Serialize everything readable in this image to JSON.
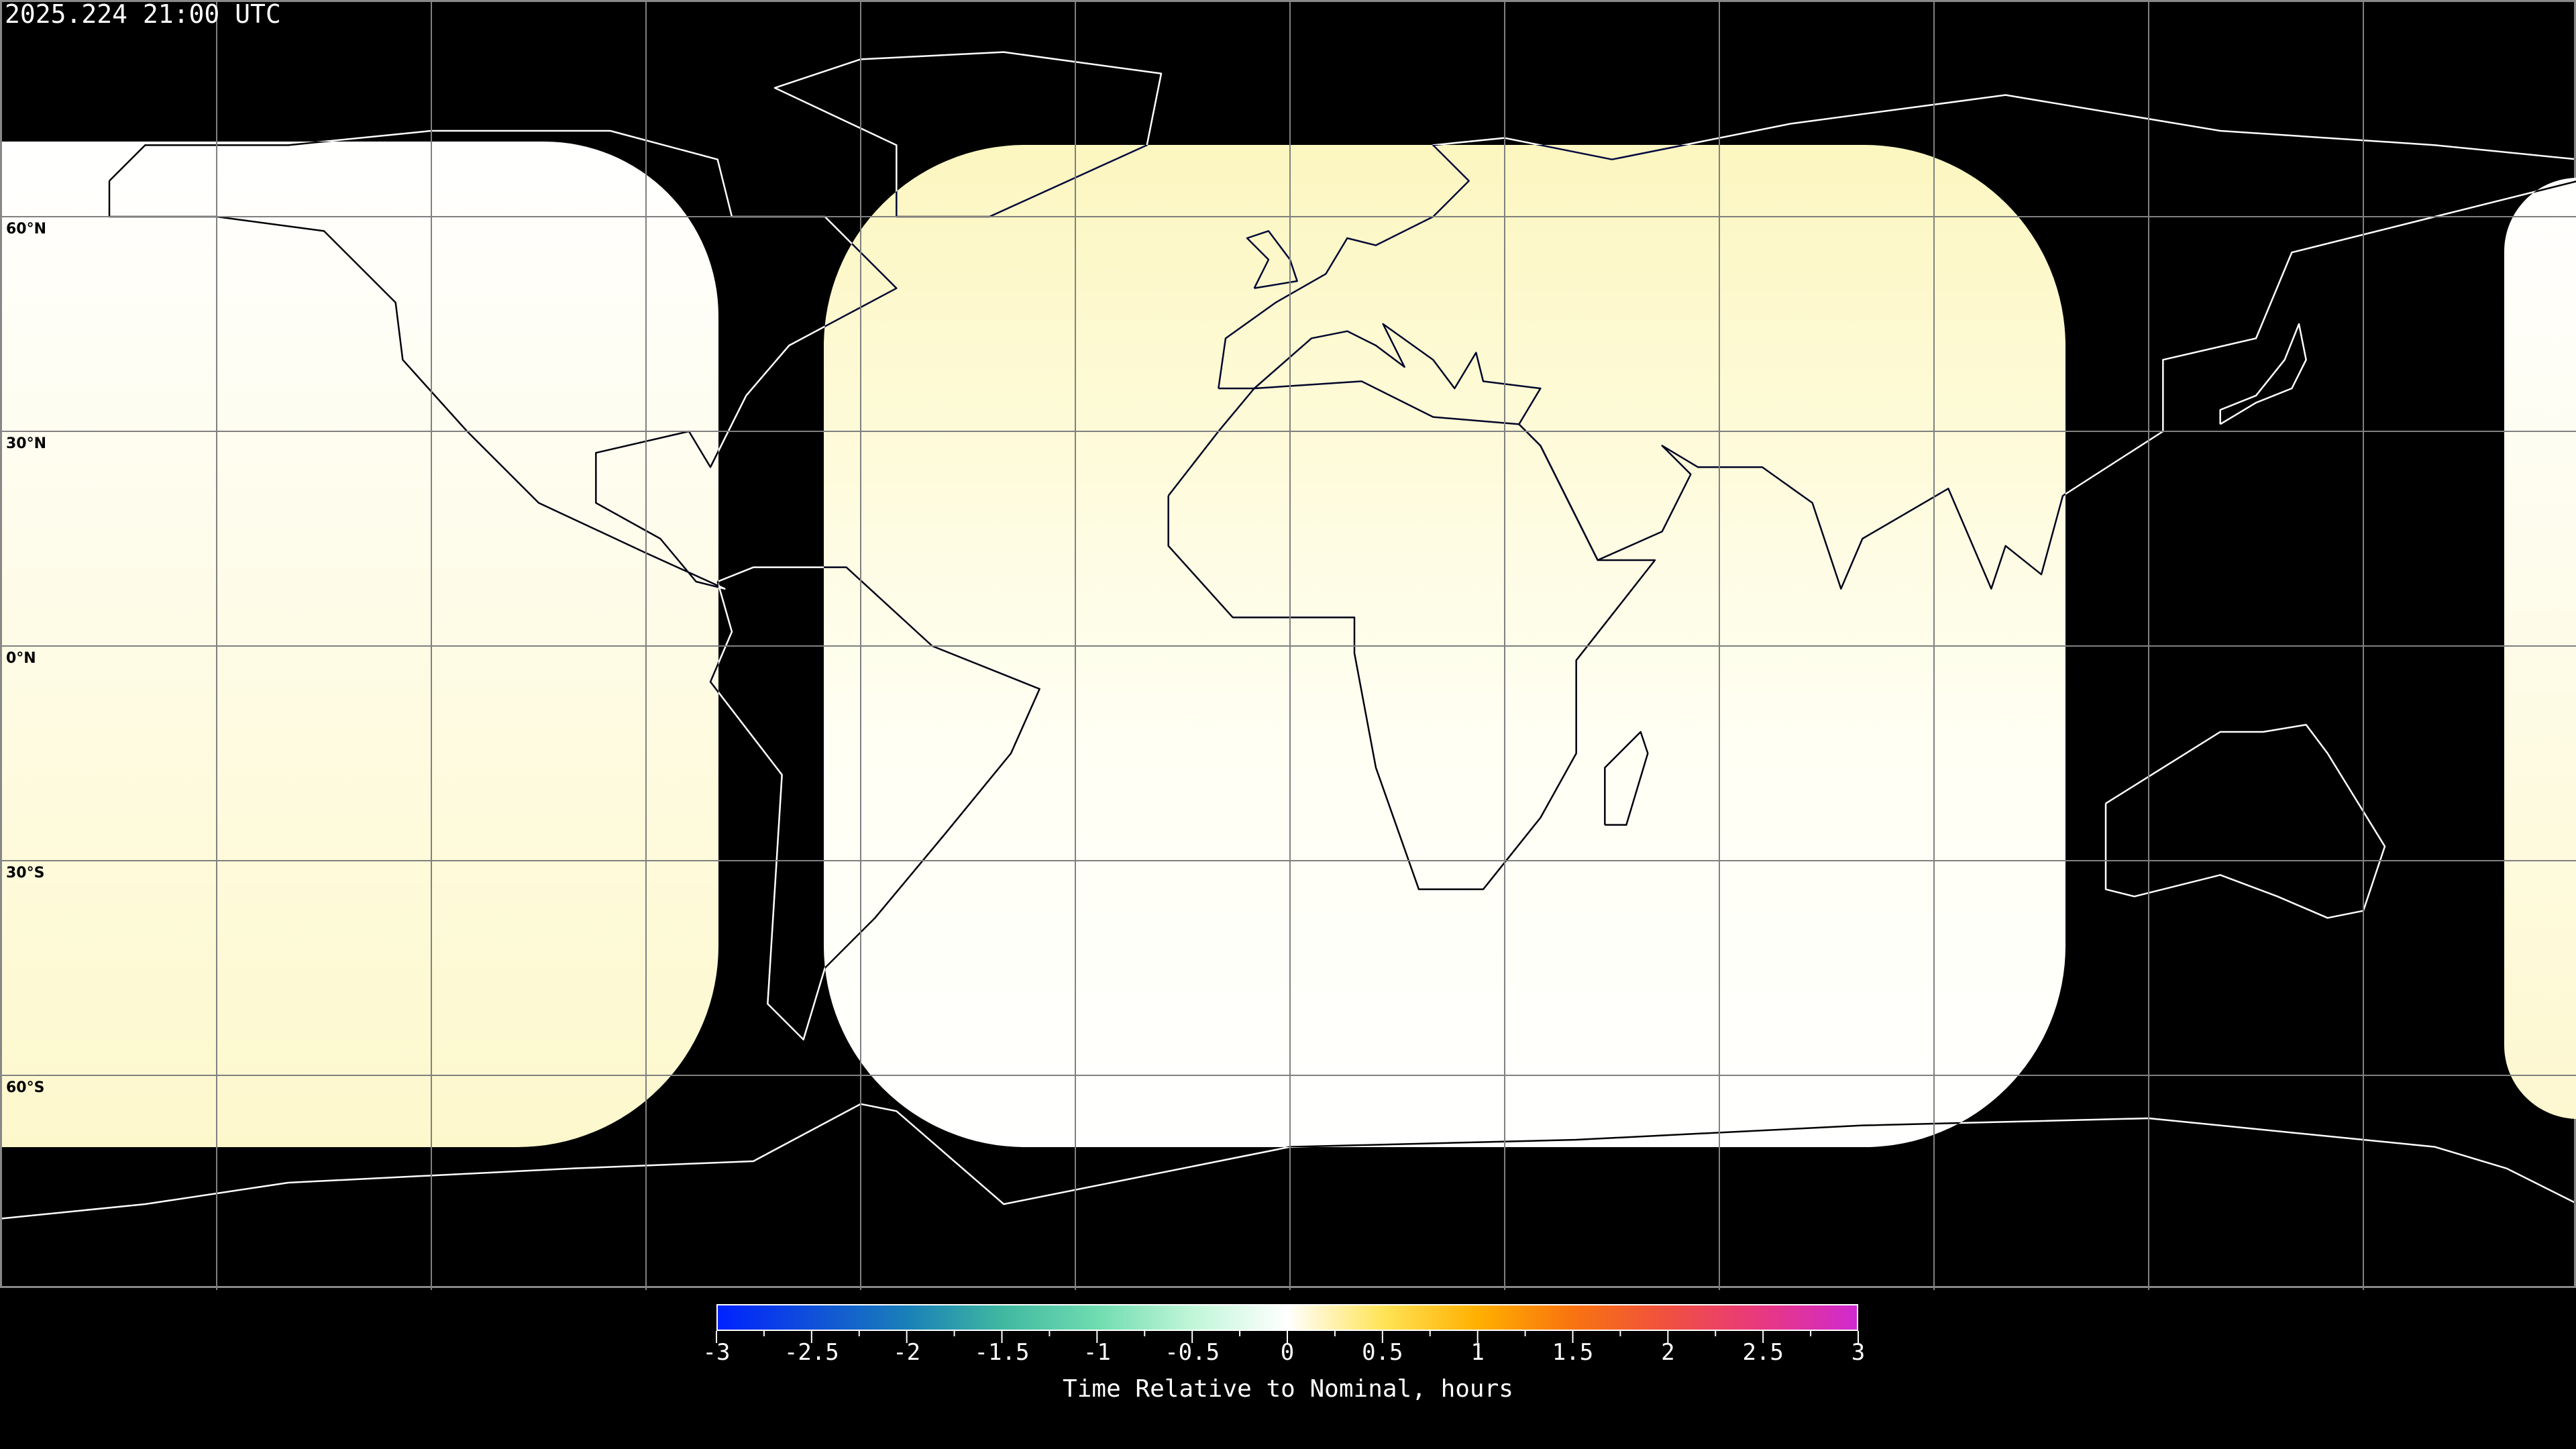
{
  "header": {
    "timestamp": "2025.224 21:00 UTC"
  },
  "map": {
    "projection": "equirectangular",
    "grid_spacing_deg": 30,
    "latitude_labels": [
      {
        "lat": 60,
        "text": "60°N"
      },
      {
        "lat": 30,
        "text": "30°N"
      },
      {
        "lat": 0,
        "text": "0°N"
      },
      {
        "lat": -30,
        "text": "30°S"
      },
      {
        "lat": -60,
        "text": "60°S"
      }
    ],
    "colors": {
      "background": "#000000",
      "grid": "#808080",
      "coastline": "#ffffff",
      "swath_top": "#fcf6c0",
      "swath_bottom": "#ffffff"
    }
  },
  "colorbar": {
    "label": "Time Relative to Nominal, hours",
    "min": -3,
    "max": 3,
    "tick_labels": [
      "-3",
      "-2.5",
      "-2",
      "-1.5",
      "-1",
      "-0.5",
      "0",
      "0.5",
      "1",
      "1.5",
      "2",
      "2.5",
      "3"
    ],
    "stops": [
      {
        "v": -3,
        "c": "#0022ff"
      },
      {
        "v": -2.5,
        "c": "#1050d8"
      },
      {
        "v": -2,
        "c": "#1a80b8"
      },
      {
        "v": -1.5,
        "c": "#40b8a0"
      },
      {
        "v": -1,
        "c": "#70dcb0"
      },
      {
        "v": -0.5,
        "c": "#c0f6d8"
      },
      {
        "v": 0,
        "c": "#ffffff"
      },
      {
        "v": 0.5,
        "c": "#ffe458"
      },
      {
        "v": 1,
        "c": "#ffb000"
      },
      {
        "v": 1.5,
        "c": "#f87410"
      },
      {
        "v": 2,
        "c": "#f05040"
      },
      {
        "v": 2.5,
        "c": "#e83880"
      },
      {
        "v": 3,
        "c": "#d02ad0"
      }
    ]
  }
}
